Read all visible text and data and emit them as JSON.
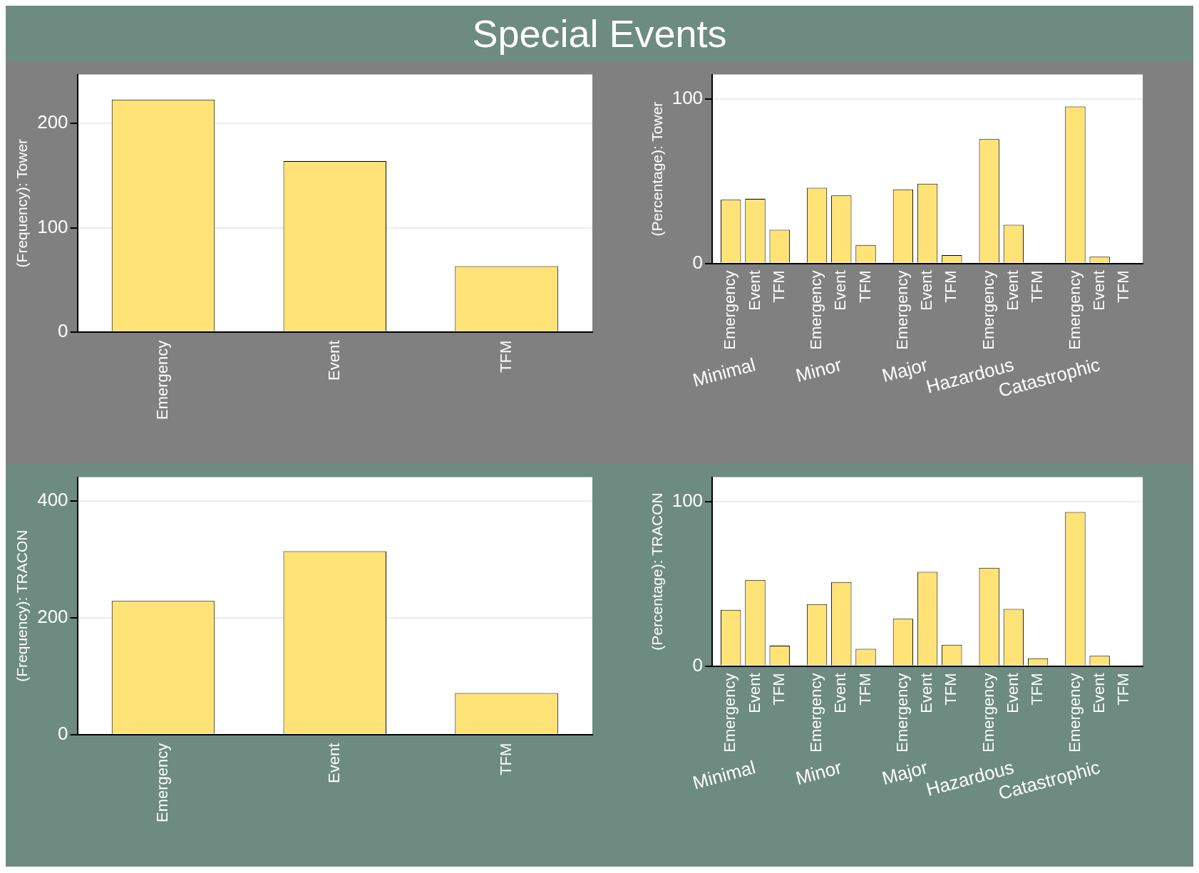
{
  "chart_data": [
    {
      "type": "bar",
      "title": "Special Events",
      "ylabel": "(Frequency): Tower",
      "categories": [
        "Emergency",
        "Event",
        "TFM"
      ],
      "values": [
        223,
        164,
        63
      ],
      "color": "#ffe376",
      "ylim": [
        0,
        247
      ],
      "yticks": [
        0,
        100,
        200
      ],
      "grid": "y"
    },
    {
      "type": "bar",
      "ylabel": "(Percentage): Tower",
      "categories": [
        "Minimal",
        "Minor",
        "Major",
        "Hazardous",
        "Catastrophic"
      ],
      "series": [
        {
          "name": "Emergency",
          "color": "#ffe376",
          "values": [
            38.8,
            46,
            45,
            75.6,
            95.5
          ]
        },
        {
          "name": "Event",
          "color": "#ffe376",
          "values": [
            39.3,
            41.3,
            48.5,
            23.4,
            4
          ]
        },
        {
          "name": "TFM",
          "color": "#ffe376",
          "values": [
            20.4,
            11.2,
            5,
            0,
            0
          ]
        }
      ],
      "ylim": [
        0,
        115
      ],
      "yticks": [
        0,
        100
      ],
      "grid": "y"
    },
    {
      "type": "bar",
      "ylabel": "(Frequency): TRACON",
      "categories": [
        "Emergency",
        "Event",
        "TFM"
      ],
      "values": [
        229,
        314,
        71
      ],
      "color": "#ffe376",
      "ylim": [
        0,
        441
      ],
      "yticks": [
        0,
        200,
        400
      ],
      "grid": "y"
    },
    {
      "type": "bar",
      "ylabel": "(Percentage): TRACON",
      "categories": [
        "Minimal",
        "Minor",
        "Major",
        "Hazardous",
        "Catastrophic"
      ],
      "series": [
        {
          "name": "Emergency",
          "color": "#ffe376",
          "values": [
            34.2,
            37.7,
            28.8,
            59.8,
            93.8
          ]
        },
        {
          "name": "Event",
          "color": "#ffe376",
          "values": [
            52.4,
            51.1,
            57.3,
            34.7,
            6.2
          ]
        },
        {
          "name": "TFM",
          "color": "#ffe376",
          "values": [
            12.4,
            10.4,
            12.9,
            4.7,
            0
          ]
        }
      ],
      "ylim": [
        0,
        115
      ],
      "yticks": [
        0,
        100
      ],
      "grid": "y"
    }
  ]
}
